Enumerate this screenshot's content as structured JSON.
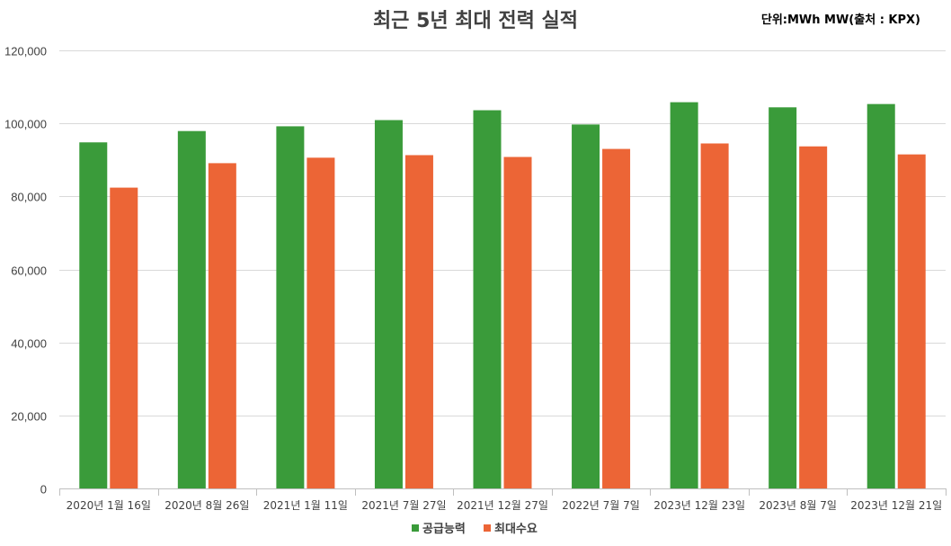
{
  "chart_data": {
    "type": "bar",
    "title": "최근 5년 최대 전력 실적",
    "unit_note": "단위:MWh MW(출처 : KPX)",
    "categories": [
      "2020년 1월 16일",
      "2020년 8월 26일",
      "2021년 1월 11일",
      "2021년 7월 27일",
      "2021년 12월 27일",
      "2022년 7월 7일",
      "2023년 12월 23일",
      "2023년 8월 7일",
      "2023년 12월 21일"
    ],
    "series": [
      {
        "name": "공급능력",
        "color": "#3a9b3a",
        "values": [
          94800,
          97900,
          99200,
          100900,
          103600,
          99700,
          105800,
          104400,
          105300
        ]
      },
      {
        "name": "최대수요",
        "color": "#ec6536",
        "values": [
          82400,
          89100,
          90600,
          91300,
          90800,
          93000,
          94500,
          93700,
          91500
        ]
      }
    ],
    "ylim": [
      0,
      120000
    ],
    "yticks": [
      "0",
      "20,000",
      "40,000",
      "60,000",
      "80,000",
      "100,000",
      "120,000"
    ],
    "ytick_values": [
      0,
      20000,
      40000,
      60000,
      80000,
      100000,
      120000
    ],
    "grid": true,
    "legend_position": "bottom"
  }
}
